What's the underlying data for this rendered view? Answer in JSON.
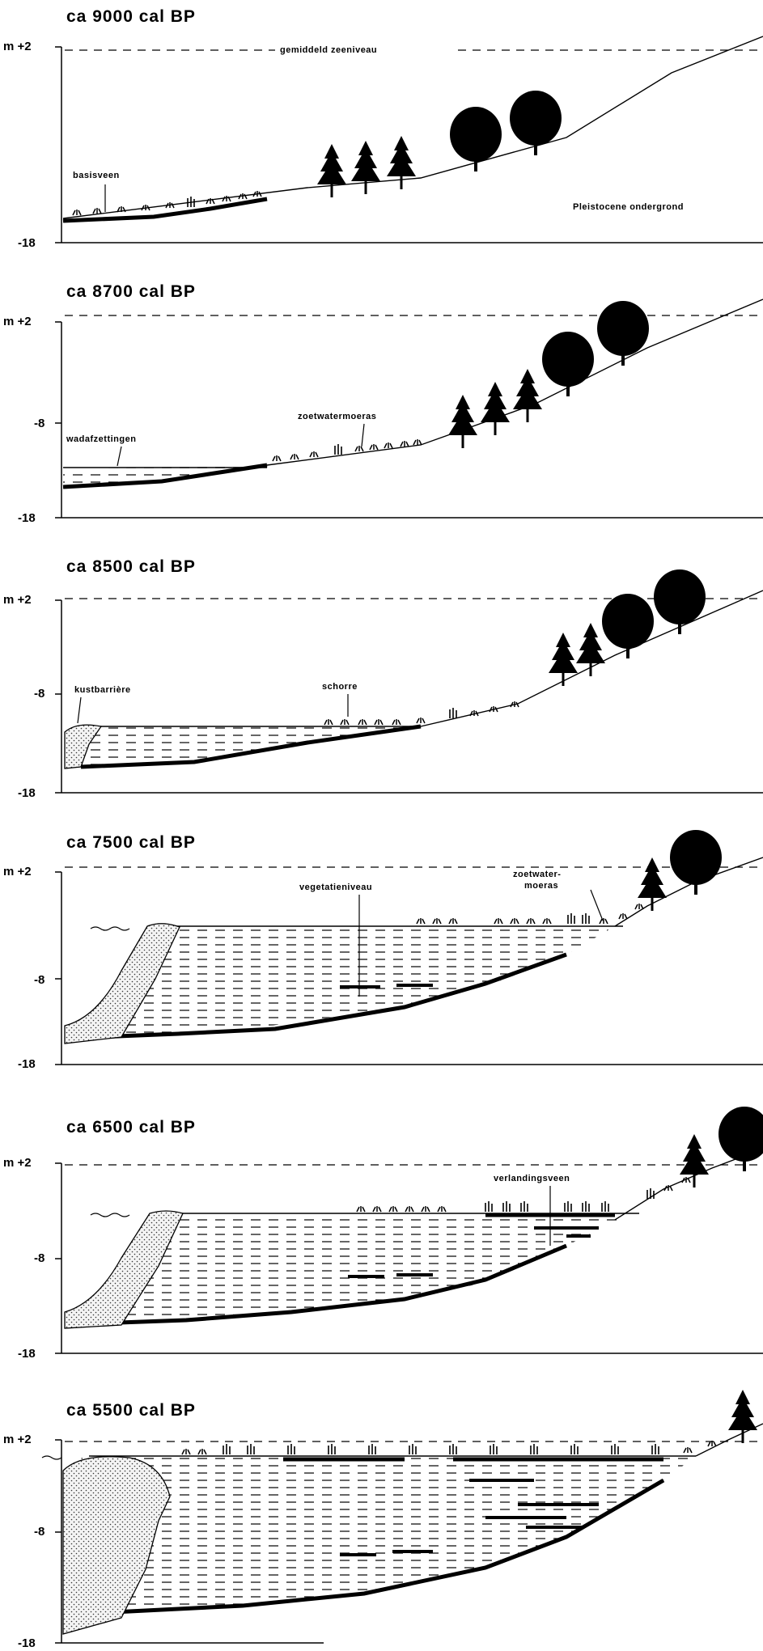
{
  "panels": [
    {
      "id": "p1",
      "title": "ca 9000 cal BP",
      "axis": {
        "top": "m +2",
        "bottom": "-18"
      },
      "labels": {
        "sealevel": "gemiddeld zeeniveau",
        "basisveen": "basisveen",
        "pleistocene": "Pleistocene ondergrond"
      }
    },
    {
      "id": "p2",
      "title": "ca 8700 cal BP",
      "axis": {
        "top": "m +2",
        "mid": "-8",
        "bottom": "-18"
      },
      "labels": {
        "wad": "wadafzettingen",
        "zoet": "zoetwatermoeras"
      }
    },
    {
      "id": "p3",
      "title": "ca 8500 cal BP",
      "axis": {
        "top": "m +2",
        "mid": "-8",
        "bottom": "-18"
      },
      "labels": {
        "kust": "kustbarrière",
        "schorre": "schorre"
      }
    },
    {
      "id": "p4",
      "title": "ca 7500 cal BP",
      "axis": {
        "top": "m +2",
        "mid": "-8",
        "bottom": "-18"
      },
      "labels": {
        "veg": "vegetatieniveau",
        "zoet1": "zoetwater-",
        "zoet2": "moeras"
      }
    },
    {
      "id": "p5",
      "title": "ca 6500 cal BP",
      "axis": {
        "top": "m +2",
        "mid": "-8",
        "bottom": "-18"
      },
      "labels": {
        "verl": "verlandingsveen"
      }
    },
    {
      "id": "p6",
      "title": "ca 5500 cal BP",
      "axis": {
        "top": "m +2",
        "mid": "-8",
        "bottom": "-18"
      },
      "labels": {}
    }
  ]
}
